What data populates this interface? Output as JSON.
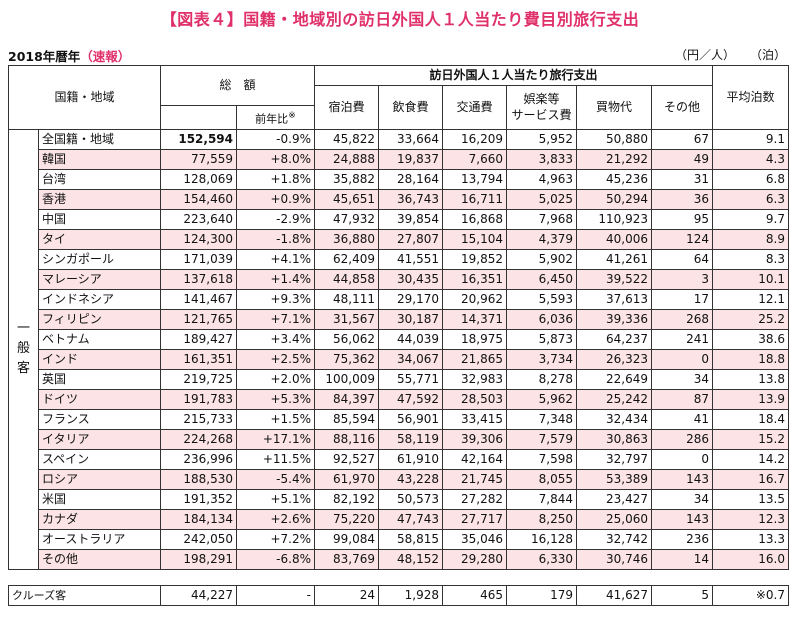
{
  "title": "【図表４】国籍・地域別の訪日外国人１人当たり費目別旅行支出",
  "subtitle": {
    "year": "2018年暦年",
    "status": "（速報）"
  },
  "units": {
    "yen": "（円／人）",
    "nights": "（泊）"
  },
  "headers": {
    "region": "国籍・地域",
    "total": "総　額",
    "yoy": "前年比",
    "yoy_mark": "※",
    "group": "訪日外国人１人当たり旅行支出",
    "accommodation": "宿泊費",
    "food": "飲食費",
    "transport": "交通費",
    "entertainment1": "娯楽等",
    "entertainment2": "サービス費",
    "shopping": "買物代",
    "other": "その他",
    "nights": "平均泊数"
  },
  "general_label": {
    "line1": "一",
    "line2": "般",
    "line3": "客"
  },
  "rows": [
    {
      "name": "全国籍・地域",
      "total": "152,594",
      "yoy": "-0.9%",
      "acc": "45,822",
      "food": "33,664",
      "trans": "16,209",
      "ent": "5,952",
      "shop": "50,880",
      "other": "67",
      "nights": "9.1"
    },
    {
      "name": "韓国",
      "total": "77,559",
      "yoy": "+8.0%",
      "acc": "24,888",
      "food": "19,837",
      "trans": "7,660",
      "ent": "3,833",
      "shop": "21,292",
      "other": "49",
      "nights": "4.3"
    },
    {
      "name": "台湾",
      "total": "128,069",
      "yoy": "+1.8%",
      "acc": "35,882",
      "food": "28,164",
      "trans": "13,794",
      "ent": "4,963",
      "shop": "45,236",
      "other": "31",
      "nights": "6.8"
    },
    {
      "name": "香港",
      "total": "154,460",
      "yoy": "+0.9%",
      "acc": "45,651",
      "food": "36,743",
      "trans": "16,711",
      "ent": "5,025",
      "shop": "50,294",
      "other": "36",
      "nights": "6.3"
    },
    {
      "name": "中国",
      "total": "223,640",
      "yoy": "-2.9%",
      "acc": "47,932",
      "food": "39,854",
      "trans": "16,868",
      "ent": "7,968",
      "shop": "110,923",
      "other": "95",
      "nights": "9.7"
    },
    {
      "name": "タイ",
      "total": "124,300",
      "yoy": "-1.8%",
      "acc": "36,880",
      "food": "27,807",
      "trans": "15,104",
      "ent": "4,379",
      "shop": "40,006",
      "other": "124",
      "nights": "8.9"
    },
    {
      "name": "シンガポール",
      "total": "171,039",
      "yoy": "+4.1%",
      "acc": "62,409",
      "food": "41,551",
      "trans": "19,852",
      "ent": "5,902",
      "shop": "41,261",
      "other": "64",
      "nights": "8.3"
    },
    {
      "name": "マレーシア",
      "total": "137,618",
      "yoy": "+1.4%",
      "acc": "44,858",
      "food": "30,435",
      "trans": "16,351",
      "ent": "6,450",
      "shop": "39,522",
      "other": "3",
      "nights": "10.1"
    },
    {
      "name": "インドネシア",
      "total": "141,467",
      "yoy": "+9.3%",
      "acc": "48,111",
      "food": "29,170",
      "trans": "20,962",
      "ent": "5,593",
      "shop": "37,613",
      "other": "17",
      "nights": "12.1"
    },
    {
      "name": "フィリピン",
      "total": "121,765",
      "yoy": "+7.1%",
      "acc": "31,567",
      "food": "30,187",
      "trans": "14,371",
      "ent": "6,036",
      "shop": "39,336",
      "other": "268",
      "nights": "25.2"
    },
    {
      "name": "ベトナム",
      "total": "189,427",
      "yoy": "+3.4%",
      "acc": "56,062",
      "food": "44,039",
      "trans": "18,975",
      "ent": "5,873",
      "shop": "64,237",
      "other": "241",
      "nights": "38.6"
    },
    {
      "name": "インド",
      "total": "161,351",
      "yoy": "+2.5%",
      "acc": "75,362",
      "food": "34,067",
      "trans": "21,865",
      "ent": "3,734",
      "shop": "26,323",
      "other": "0",
      "nights": "18.8"
    },
    {
      "name": "英国",
      "total": "219,725",
      "yoy": "+2.0%",
      "acc": "100,009",
      "food": "55,771",
      "trans": "32,983",
      "ent": "8,278",
      "shop": "22,649",
      "other": "34",
      "nights": "13.8"
    },
    {
      "name": "ドイツ",
      "total": "191,783",
      "yoy": "+5.3%",
      "acc": "84,397",
      "food": "47,592",
      "trans": "28,503",
      "ent": "5,962",
      "shop": "25,242",
      "other": "87",
      "nights": "13.9"
    },
    {
      "name": "フランス",
      "total": "215,733",
      "yoy": "+1.5%",
      "acc": "85,594",
      "food": "56,901",
      "trans": "33,415",
      "ent": "7,348",
      "shop": "32,434",
      "other": "41",
      "nights": "18.4"
    },
    {
      "name": "イタリア",
      "total": "224,268",
      "yoy": "+17.1%",
      "acc": "88,116",
      "food": "58,119",
      "trans": "39,306",
      "ent": "7,579",
      "shop": "30,863",
      "other": "286",
      "nights": "15.2"
    },
    {
      "name": "スペイン",
      "total": "236,996",
      "yoy": "+11.5%",
      "acc": "92,527",
      "food": "61,910",
      "trans": "42,164",
      "ent": "7,598",
      "shop": "32,797",
      "other": "0",
      "nights": "14.2"
    },
    {
      "name": "ロシア",
      "total": "188,530",
      "yoy": "-5.4%",
      "acc": "61,970",
      "food": "43,228",
      "trans": "21,745",
      "ent": "8,055",
      "shop": "53,389",
      "other": "143",
      "nights": "16.7"
    },
    {
      "name": "米国",
      "total": "191,352",
      "yoy": "+5.1%",
      "acc": "82,192",
      "food": "50,573",
      "trans": "27,282",
      "ent": "7,844",
      "shop": "23,427",
      "other": "34",
      "nights": "13.5"
    },
    {
      "name": "カナダ",
      "total": "184,134",
      "yoy": "+2.6%",
      "acc": "75,220",
      "food": "47,743",
      "trans": "27,717",
      "ent": "8,250",
      "shop": "25,060",
      "other": "143",
      "nights": "12.3"
    },
    {
      "name": "オーストラリア",
      "total": "242,050",
      "yoy": "+7.2%",
      "acc": "99,084",
      "food": "58,815",
      "trans": "35,046",
      "ent": "16,128",
      "shop": "32,742",
      "other": "236",
      "nights": "13.3"
    },
    {
      "name": "その他",
      "total": "198,291",
      "yoy": "-6.8%",
      "acc": "83,769",
      "food": "48,152",
      "trans": "29,280",
      "ent": "6,330",
      "shop": "30,746",
      "other": "14",
      "nights": "16.0"
    }
  ],
  "cruise": {
    "name": "クルーズ客",
    "total": "44,227",
    "yoy": "-",
    "acc": "24",
    "food": "1,928",
    "trans": "465",
    "ent": "179",
    "shop": "41,627",
    "other": "5",
    "nights": "※0.7"
  },
  "colors": {
    "title": "#e0306a",
    "stripe": "#fbe3e6"
  }
}
